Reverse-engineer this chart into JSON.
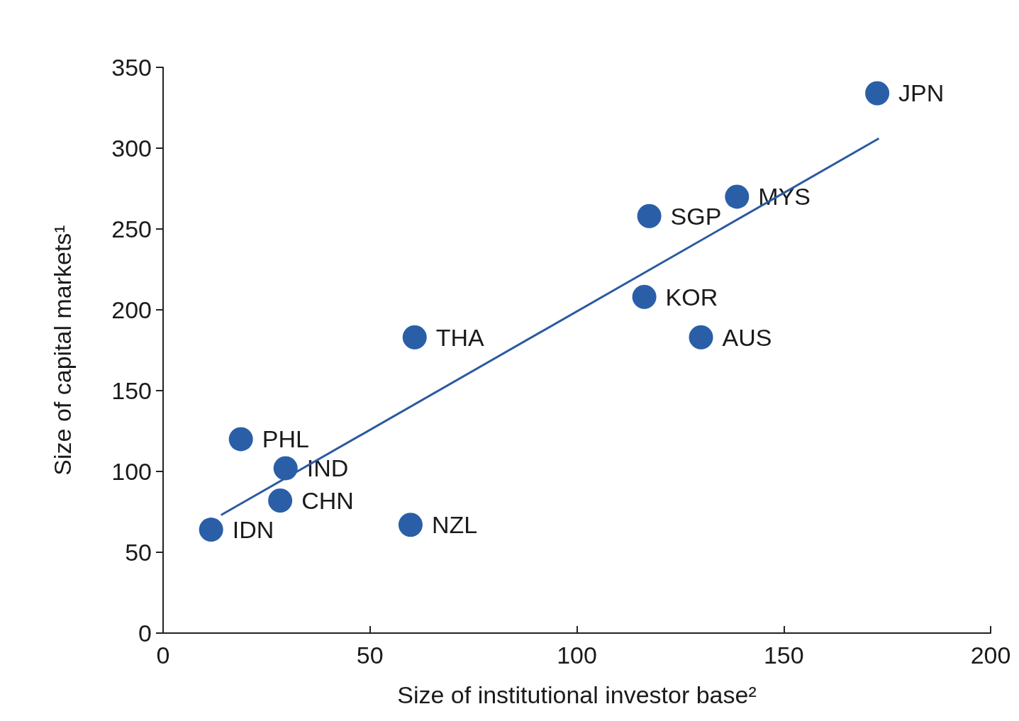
{
  "chart_data": {
    "type": "scatter",
    "xlabel": "Size of institutional investor base²",
    "ylabel": "Size of capital markets¹",
    "xlim": [
      0,
      200
    ],
    "xticks": [
      0,
      50,
      100,
      150,
      200
    ],
    "ylim": [
      0,
      350
    ],
    "yticks": [
      0,
      50,
      100,
      150,
      200,
      250,
      300,
      350
    ],
    "grid": false,
    "marker": "circle",
    "series": [
      {
        "color": "#2a5fa8",
        "x": [
          172.6,
          138.7,
          117.5,
          116.3,
          130,
          60.8,
          18.8,
          29.6,
          28.3,
          11.6,
          59.8
        ],
        "values": [
          334,
          270,
          258,
          208,
          183,
          183,
          120,
          102,
          82,
          64,
          67
        ]
      },
      {
        "type": "line",
        "color": "#2b5aa0",
        "line_style": "solid",
        "marker": "none",
        "x": [
          14,
          173
        ],
        "values": [
          73,
          306
        ]
      }
    ],
    "annotations": [
      {
        "text": "JPN",
        "x": 172.6,
        "y": 334
      },
      {
        "text": "MYS",
        "x": 138.7,
        "y": 270
      },
      {
        "text": "SGP",
        "x": 117.5,
        "y": 258
      },
      {
        "text": "KOR",
        "x": 116.3,
        "y": 208
      },
      {
        "text": "AUS",
        "x": 130,
        "y": 183
      },
      {
        "text": "THA",
        "x": 60.8,
        "y": 183
      },
      {
        "text": "PHL",
        "x": 18.8,
        "y": 120
      },
      {
        "text": "IND",
        "x": 29.6,
        "y": 102
      },
      {
        "text": "CHN",
        "x": 28.3,
        "y": 82
      },
      {
        "text": "IDN",
        "x": 11.6,
        "y": 64
      },
      {
        "text": "NZL",
        "x": 59.8,
        "y": 67
      }
    ]
  }
}
